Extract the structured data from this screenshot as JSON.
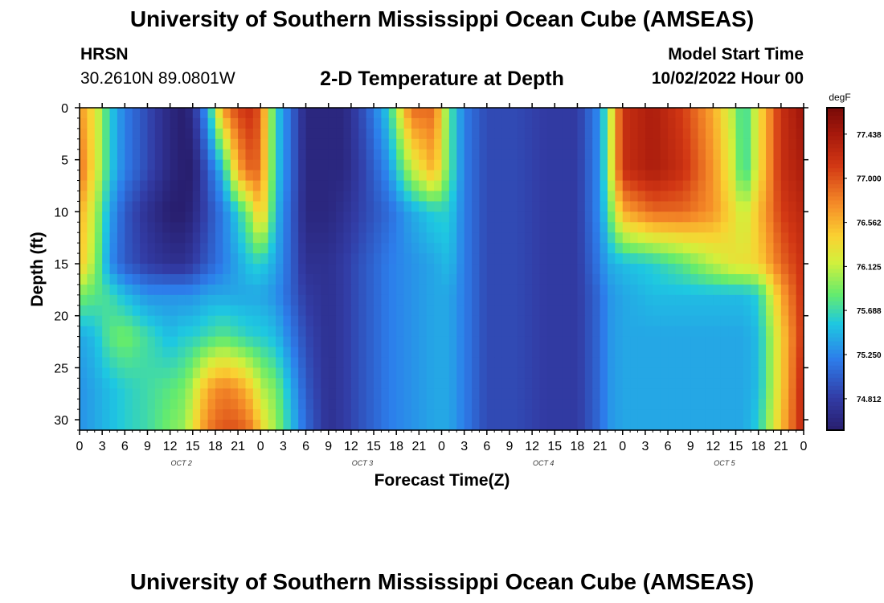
{
  "header": {
    "title": "University of Southern Mississippi Ocean Cube (AMSEAS)",
    "station": "HRSN",
    "coords": "30.2610N  89.0801W",
    "subtitle": "2-D Temperature at Depth",
    "model_start_label": "Model Start Time",
    "model_start_value": "10/02/2022 Hour 00"
  },
  "footer": {
    "title": "University of Southern Mississippi Ocean Cube (AMSEAS)"
  },
  "chart_data": {
    "type": "heatmap",
    "title": "2-D Temperature at Depth",
    "xlabel": "Forecast Time(Z)",
    "ylabel": "Depth (ft)",
    "x_ticks": [
      "0",
      "3",
      "6",
      "9",
      "12",
      "15",
      "18",
      "21",
      "0",
      "3",
      "6",
      "9",
      "12",
      "15",
      "18",
      "21",
      "0",
      "3",
      "6",
      "9",
      "12",
      "15",
      "18",
      "21",
      "0",
      "3",
      "6",
      "9",
      "12",
      "15",
      "18",
      "21",
      "0"
    ],
    "day_labels": [
      "OCT 2",
      "OCT 3",
      "OCT 4",
      "OCT 5"
    ],
    "y_ticks": [
      0,
      5,
      10,
      15,
      20,
      25,
      30
    ],
    "ylim": [
      0,
      31
    ],
    "xlim_hours": [
      0,
      96
    ],
    "colorbar": {
      "unit": "degF",
      "ticks": [
        "77.438",
        "77.000",
        "76.562",
        "76.125",
        "75.688",
        "75.250",
        "74.812"
      ],
      "range": [
        74.5,
        77.7
      ]
    },
    "depths_ft": [
      0,
      6,
      10,
      15,
      18,
      22,
      27,
      31
    ],
    "times_h": [
      0,
      2,
      4,
      6,
      9,
      12,
      14,
      15,
      17,
      19,
      21,
      23,
      24,
      26,
      30,
      33,
      35,
      38,
      41,
      44,
      47,
      49,
      51,
      54,
      58,
      62,
      66,
      69,
      70,
      72,
      76,
      80,
      84,
      87,
      88,
      90,
      93,
      96
    ],
    "temperature_degF": [
      [
        76.7,
        76.3,
        75.6,
        75.2,
        74.9,
        74.6,
        74.5,
        74.7,
        75.4,
        76.7,
        77.1,
        77.2,
        76.9,
        75.6,
        74.6,
        74.6,
        74.6,
        75.0,
        75.6,
        76.9,
        76.9,
        75.8,
        75.2,
        74.9,
        74.9,
        74.8,
        74.8,
        75.3,
        75.9,
        77.2,
        77.4,
        77.1,
        76.6,
        76.0,
        75.6,
        76.3,
        77.2,
        77.5
      ],
      [
        76.9,
        76.3,
        75.6,
        75.2,
        74.9,
        74.6,
        74.5,
        74.5,
        75.0,
        75.5,
        76.6,
        77.0,
        76.8,
        75.6,
        74.6,
        74.6,
        74.6,
        74.9,
        75.3,
        76.1,
        76.6,
        75.8,
        75.2,
        74.9,
        74.9,
        74.8,
        74.8,
        75.3,
        75.9,
        77.2,
        77.4,
        77.2,
        76.7,
        76.1,
        75.6,
        76.3,
        77.2,
        77.4
      ],
      [
        76.6,
        76.1,
        75.4,
        75.0,
        74.7,
        74.5,
        74.5,
        74.6,
        74.9,
        75.2,
        75.6,
        76.1,
        76.6,
        75.5,
        74.6,
        74.6,
        74.7,
        74.9,
        75.1,
        75.4,
        75.6,
        75.6,
        75.2,
        74.9,
        74.9,
        74.8,
        74.8,
        75.3,
        75.7,
        76.6,
        76.9,
        76.9,
        76.7,
        76.3,
        76.1,
        76.5,
        77.1,
        77.3
      ],
      [
        76.5,
        76.0,
        75.3,
        75.0,
        74.8,
        74.7,
        74.7,
        74.8,
        75.0,
        75.2,
        75.4,
        75.6,
        75.6,
        75.4,
        74.7,
        74.7,
        74.8,
        75.0,
        75.2,
        75.3,
        75.4,
        75.5,
        75.2,
        74.9,
        74.9,
        74.8,
        74.8,
        75.2,
        75.4,
        75.5,
        75.6,
        75.8,
        76.1,
        76.3,
        76.3,
        76.4,
        76.9,
        77.2
      ],
      [
        75.9,
        75.8,
        75.7,
        75.5,
        75.3,
        75.3,
        75.3,
        75.3,
        75.4,
        75.4,
        75.4,
        75.4,
        75.4,
        75.3,
        74.8,
        74.7,
        74.8,
        75.0,
        75.2,
        75.3,
        75.4,
        75.4,
        75.2,
        74.9,
        74.9,
        74.8,
        74.8,
        75.1,
        75.3,
        75.4,
        75.5,
        75.5,
        75.5,
        75.5,
        75.5,
        75.6,
        76.6,
        77.2
      ],
      [
        75.4,
        75.5,
        75.8,
        75.9,
        75.7,
        75.5,
        75.6,
        75.6,
        75.7,
        75.8,
        75.7,
        75.6,
        75.6,
        75.5,
        74.9,
        74.7,
        74.8,
        75.0,
        75.2,
        75.3,
        75.4,
        75.4,
        75.2,
        74.9,
        74.9,
        74.8,
        74.8,
        75.1,
        75.3,
        75.4,
        75.4,
        75.4,
        75.4,
        75.4,
        75.4,
        75.5,
        76.4,
        77.2
      ],
      [
        75.3,
        75.4,
        75.5,
        75.6,
        75.7,
        75.8,
        75.9,
        76.1,
        76.6,
        76.8,
        76.7,
        76.4,
        76.1,
        75.9,
        75.0,
        74.7,
        74.8,
        75.0,
        75.2,
        75.3,
        75.4,
        75.4,
        75.2,
        74.9,
        74.9,
        74.8,
        74.8,
        75.1,
        75.3,
        75.4,
        75.4,
        75.4,
        75.4,
        75.4,
        75.4,
        75.5,
        76.4,
        77.3
      ],
      [
        75.3,
        75.4,
        75.5,
        75.6,
        75.7,
        75.9,
        76.0,
        76.3,
        76.8,
        77.0,
        77.0,
        76.8,
        76.4,
        76.0,
        75.1,
        74.7,
        74.8,
        75.0,
        75.2,
        75.3,
        75.4,
        75.4,
        75.2,
        74.9,
        74.9,
        74.8,
        74.8,
        75.1,
        75.3,
        75.4,
        75.4,
        75.4,
        75.4,
        75.4,
        75.4,
        75.6,
        76.5,
        77.3
      ]
    ]
  }
}
